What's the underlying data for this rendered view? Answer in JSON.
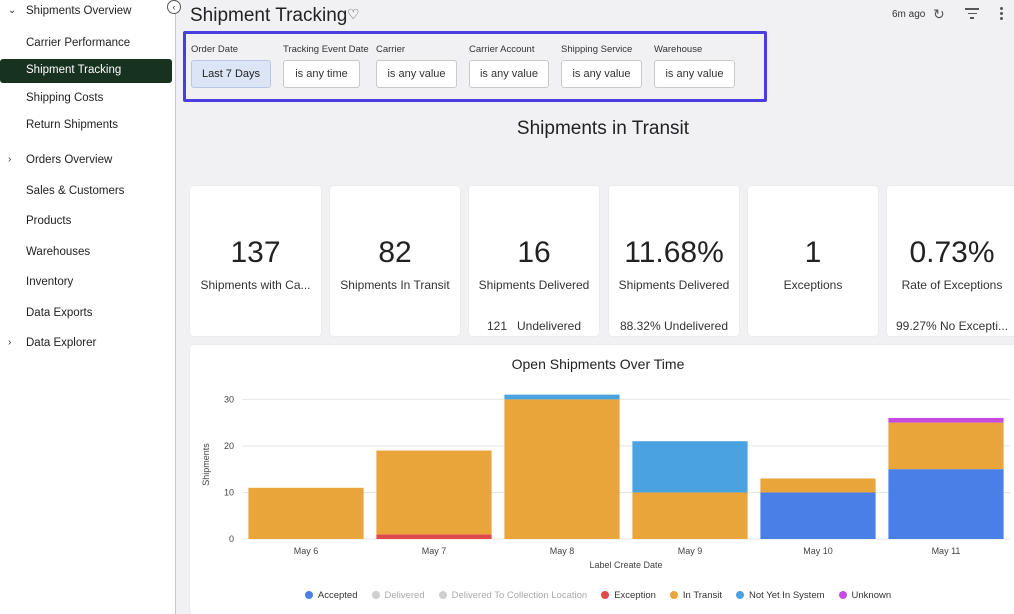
{
  "sidebar": {
    "items": [
      {
        "label": "Shipments Overview",
        "chevron": "chevron-down-icon",
        "level": 0
      },
      {
        "label": "Carrier Performance",
        "level": 1
      },
      {
        "label": "Shipment Tracking",
        "level": 1,
        "active": true
      },
      {
        "label": "Shipping Costs",
        "level": 1
      },
      {
        "label": "Return Shipments",
        "level": 1
      },
      {
        "label": "Orders Overview",
        "chevron": "chevron-right-icon",
        "level": 0
      },
      {
        "label": "Sales & Customers",
        "level": 0
      },
      {
        "label": "Products",
        "level": 0
      },
      {
        "label": "Warehouses",
        "level": 0
      },
      {
        "label": "Inventory",
        "level": 0
      },
      {
        "label": "Data Exports",
        "level": 0
      },
      {
        "label": "Data Explorer",
        "chevron": "chevron-right-icon",
        "level": 0
      }
    ]
  },
  "header": {
    "title": "Shipment Tracking",
    "updated": "6m ago"
  },
  "filters": [
    {
      "label": "Order Date",
      "value": "Last 7 Days",
      "selected": true
    },
    {
      "label": "Tracking Event Date",
      "value": "is any time"
    },
    {
      "label": "Carrier",
      "value": "is any value"
    },
    {
      "label": "Carrier Account",
      "value": "is any value"
    },
    {
      "label": "Shipping Service",
      "value": "is any value"
    },
    {
      "label": "Warehouse",
      "value": "is any value"
    }
  ],
  "section_title": "Shipments in Transit",
  "kpis": [
    {
      "value": "137",
      "label": "Shipments with Ca...",
      "sub": ""
    },
    {
      "value": "82",
      "label": "Shipments In Transit",
      "sub": ""
    },
    {
      "value": "16",
      "label": "Shipments Delivered",
      "sub": "121   Undelivered"
    },
    {
      "value": "11.68%",
      "label": "Shipments Delivered",
      "sub": "88.32% Undelivered"
    },
    {
      "value": "1",
      "label": "Exceptions",
      "sub": ""
    },
    {
      "value": "0.73%",
      "label": "Rate of Exceptions",
      "sub": "99.27% No Excepti..."
    }
  ],
  "colors": {
    "accent_border": "#4b3ee0",
    "sidebar_active": "#17321f",
    "Accepted": "#4a7fe8",
    "Delivered": "#cfcfcf",
    "Delivered To Collection Location": "#cfcfcf",
    "Exception": "#e0494a",
    "In Transit": "#e9a43a",
    "Not Yet In System": "#4aa2e0",
    "Unknown": "#c64be0"
  },
  "chart_data": {
    "type": "bar",
    "stacked": true,
    "title": "Open Shipments Over Time",
    "xlabel": "Label Create Date",
    "ylabel": "Shipments",
    "ylim": [
      0,
      32
    ],
    "yticks": [
      0,
      10,
      20,
      30
    ],
    "grid": true,
    "legend_position": "bottom",
    "categories": [
      "May 6",
      "May 7",
      "May 8",
      "May 9",
      "May 10",
      "May 11"
    ],
    "series": [
      {
        "name": "Accepted",
        "values": [
          0,
          0,
          0,
          0,
          10,
          15
        ]
      },
      {
        "name": "Delivered",
        "values": [
          0,
          0,
          0,
          0,
          0,
          0
        ]
      },
      {
        "name": "Delivered To Collection Location",
        "values": [
          0,
          0,
          0,
          0,
          0,
          0
        ]
      },
      {
        "name": "Exception",
        "values": [
          0,
          1,
          0,
          0,
          0,
          0
        ]
      },
      {
        "name": "In Transit",
        "values": [
          11,
          18,
          30,
          10,
          3,
          10
        ]
      },
      {
        "name": "Not Yet In System",
        "values": [
          0,
          0,
          1,
          11,
          0,
          0
        ]
      },
      {
        "name": "Unknown",
        "values": [
          0,
          0,
          0,
          0,
          0,
          1
        ]
      }
    ],
    "legend_muted": [
      "Delivered",
      "Delivered To Collection Location"
    ]
  }
}
